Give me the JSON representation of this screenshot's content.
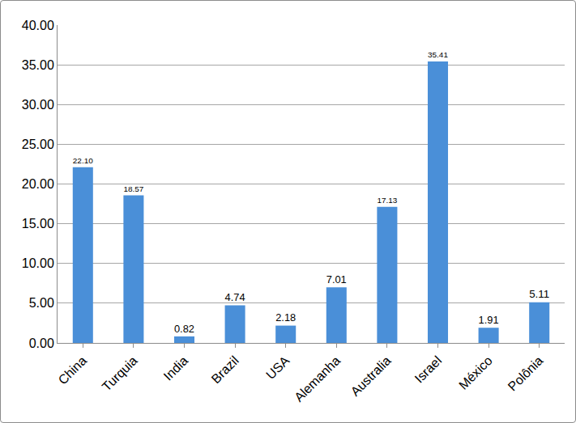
{
  "chart_data": {
    "type": "bar",
    "categories": [
      "China",
      "Turquia",
      "India",
      "Brazil",
      "USA",
      "Alemanha",
      "Australia",
      "Israel",
      "México",
      "Polônia"
    ],
    "values": [
      22.1,
      18.57,
      0.82,
      4.74,
      2.18,
      7.01,
      17.13,
      35.41,
      1.91,
      5.11
    ],
    "value_labels": [
      "22.10",
      "18.57",
      "0.82",
      "4.74",
      "2.18",
      "7.01",
      "17.13",
      "35.41",
      "1.91",
      "5.11"
    ],
    "data_labels": true,
    "color": "#4a8fd8",
    "ylim": [
      0,
      40
    ],
    "yticks": [
      {
        "value": 0,
        "label": "0.00"
      },
      {
        "value": 5,
        "label": "5.00"
      },
      {
        "value": 10,
        "label": "10.00"
      },
      {
        "value": 15,
        "label": "15.00"
      },
      {
        "value": 20,
        "label": "20.00"
      },
      {
        "value": 25,
        "label": "25.00"
      },
      {
        "value": 30,
        "label": "30.00"
      },
      {
        "value": 35,
        "label": "35.00"
      },
      {
        "value": 40,
        "label": "40.00"
      }
    ],
    "grid": true
  }
}
